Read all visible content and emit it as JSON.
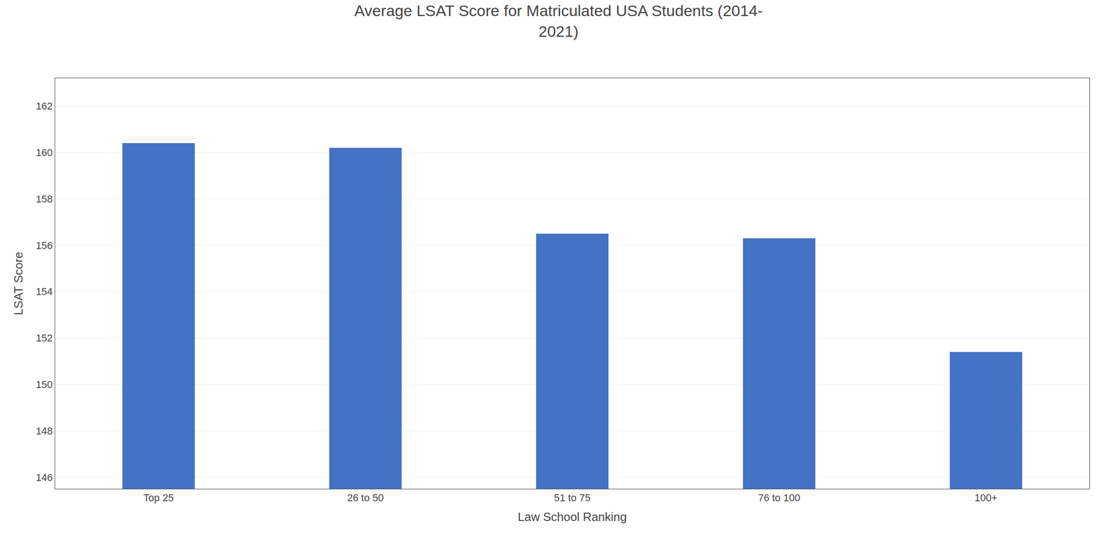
{
  "chart_data": {
    "type": "bar",
    "title": "Average LSAT Score for Matriculated USA Students (2014-\n2021)",
    "xlabel": "Law School Ranking",
    "ylabel": "LSAT Score",
    "categories": [
      "Top 25",
      "26 to 50",
      "51 to 75",
      "76 to 100",
      "100+"
    ],
    "values": [
      160.4,
      160.2,
      156.5,
      156.3,
      151.4
    ],
    "color": "#4472C4",
    "ylim": [
      145.5,
      163.2
    ],
    "yticks": [
      146,
      148,
      150,
      152,
      154,
      156,
      158,
      160,
      162
    ],
    "grid": true
  }
}
